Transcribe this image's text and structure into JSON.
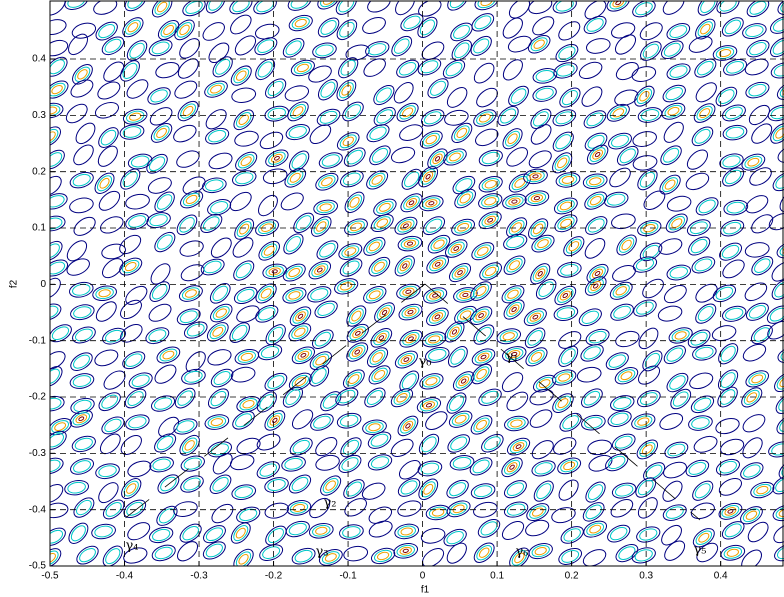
{
  "chart_data": {
    "type": "contour",
    "xlabel": "f1",
    "ylabel": "f2",
    "xlim": [
      -0.5,
      0.485
    ],
    "ylim": [
      -0.5,
      0.503
    ],
    "xticks": [
      -0.5,
      -0.4,
      -0.3,
      -0.2,
      -0.1,
      0,
      0.1,
      0.2,
      0.3,
      0.4
    ],
    "yticks": [
      -0.5,
      -0.4,
      -0.3,
      -0.2,
      -0.1,
      0,
      0.1,
      0.2,
      0.3,
      0.4
    ],
    "grid": true,
    "annotations": [
      "γ₀",
      "γ₁",
      "γ₂",
      "γ₃",
      "γ₄",
      "γ₅",
      "γ₆"
    ]
  }
}
